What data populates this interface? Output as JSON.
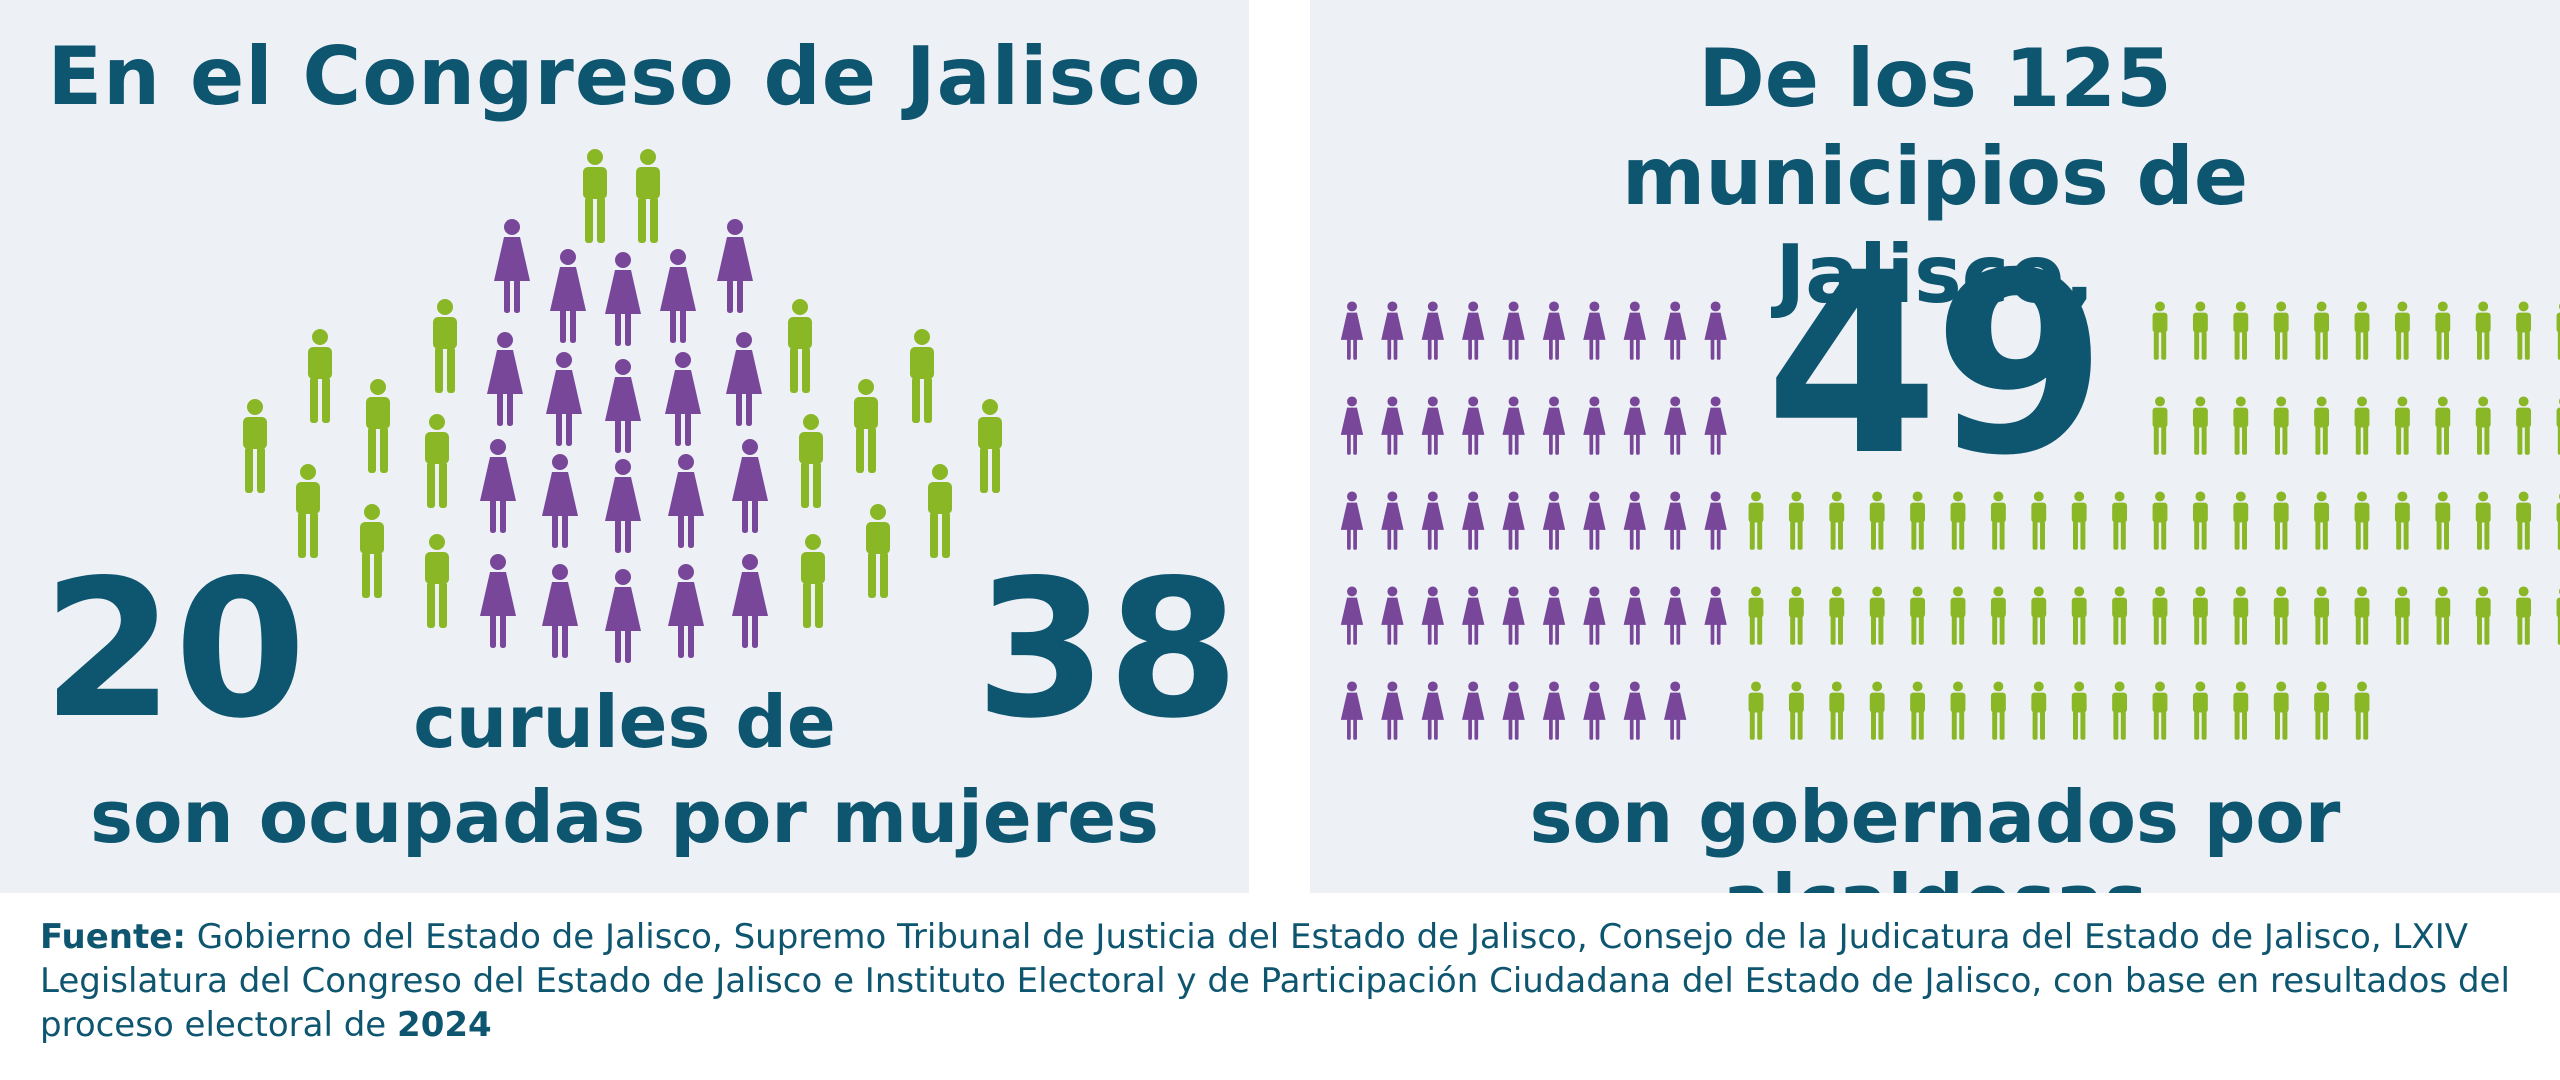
{
  "left": {
    "title": "En el Congreso de Jalisco",
    "women_seats": "20",
    "total_seats": "38",
    "middle_text": "curules de",
    "bottom_text": "son ocupadas por mujeres",
    "women_count": 20,
    "men_count": 18
  },
  "right": {
    "title": "De los 125 municipios de Jalisco,",
    "highlight_number": "49",
    "bottom_text": "son gobernados por alcaldesas",
    "women_count": 49,
    "men_count": 76
  },
  "colors": {
    "women": "#78479a",
    "men": "#8ab726",
    "text": "#0e5570",
    "panel_bg": "#edf1f6"
  },
  "icons": [
    "woman-icon",
    "man-icon"
  ],
  "source": {
    "label": "Fuente:",
    "text": "Gobierno del Estado de Jalisco, Supremo Tribunal de Justicia del Estado de Jalisco, Consejo de la Judicatura del Estado de Jalisco, LXIV Legislatura del Congreso del Estado de Jalisco e Instituto Electoral y de Participación Ciudadana del Estado de Jalisco, con base en resultados del proceso electoral de",
    "year": "2024"
  }
}
